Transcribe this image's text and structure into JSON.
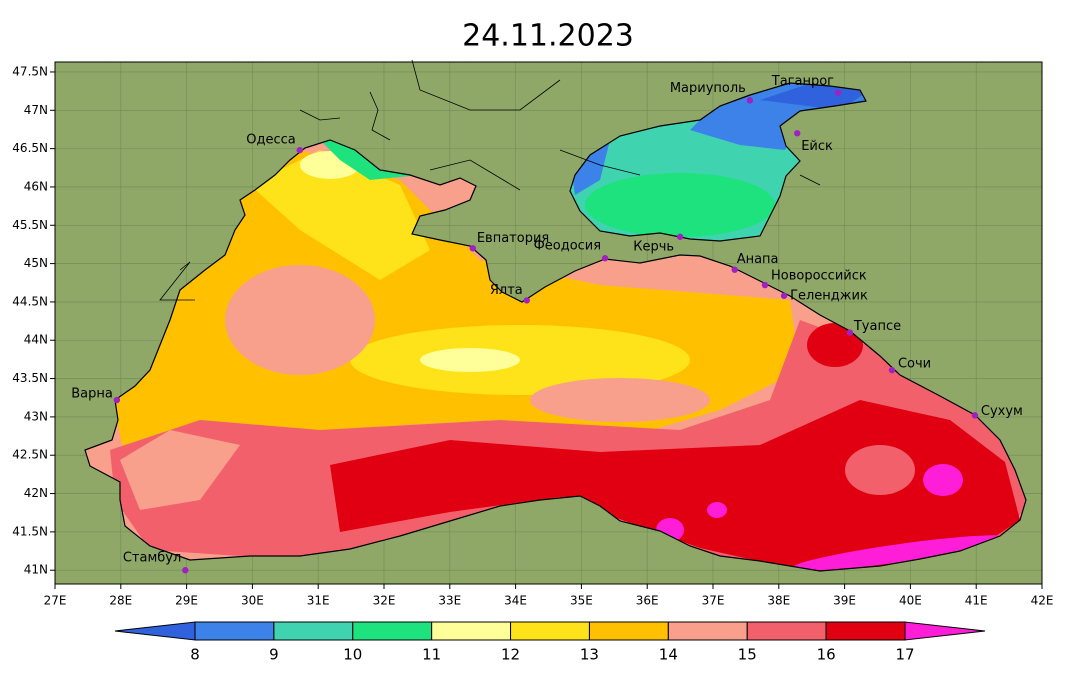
{
  "title": "24.11.2023",
  "map": {
    "lon_range": [
      27,
      42
    ],
    "lat_range": [
      40.82,
      47.63
    ],
    "land_color": "#8fa868",
    "lon_ticks": [
      {
        "value": 27,
        "label": "27E"
      },
      {
        "value": 28,
        "label": "28E"
      },
      {
        "value": 29,
        "label": "29E"
      },
      {
        "value": 30,
        "label": "30E"
      },
      {
        "value": 31,
        "label": "31E"
      },
      {
        "value": 32,
        "label": "32E"
      },
      {
        "value": 33,
        "label": "33E"
      },
      {
        "value": 34,
        "label": "34E"
      },
      {
        "value": 35,
        "label": "35E"
      },
      {
        "value": 36,
        "label": "36E"
      },
      {
        "value": 37,
        "label": "37E"
      },
      {
        "value": 38,
        "label": "38E"
      },
      {
        "value": 39,
        "label": "39E"
      },
      {
        "value": 40,
        "label": "40E"
      },
      {
        "value": 41,
        "label": "41E"
      },
      {
        "value": 42,
        "label": "42E"
      }
    ],
    "lat_ticks": [
      {
        "value": 47.5,
        "label": "47.5N"
      },
      {
        "value": 47,
        "label": "47N"
      },
      {
        "value": 46.5,
        "label": "46.5N"
      },
      {
        "value": 46,
        "label": "46N"
      },
      {
        "value": 45.5,
        "label": "45.5N"
      },
      {
        "value": 45,
        "label": "45N"
      },
      {
        "value": 44.5,
        "label": "44.5N"
      },
      {
        "value": 44,
        "label": "44N"
      },
      {
        "value": 43.5,
        "label": "43.5N"
      },
      {
        "value": 43,
        "label": "43N"
      },
      {
        "value": 42.5,
        "label": "42.5N"
      },
      {
        "value": 42,
        "label": "42N"
      },
      {
        "value": 41.5,
        "label": "41.5N"
      },
      {
        "value": 41,
        "label": "41N"
      }
    ],
    "cities": [
      {
        "name": "Одесса",
        "lon": 30.72,
        "lat": 46.48
      },
      {
        "name": "Евпатория",
        "lon": 33.35,
        "lat": 45.2
      },
      {
        "name": "Феодосия",
        "lon": 35.36,
        "lat": 45.07
      },
      {
        "name": "Керчь",
        "lon": 36.5,
        "lat": 45.35
      },
      {
        "name": "Ялта",
        "lon": 34.17,
        "lat": 44.52
      },
      {
        "name": "Мариуполь",
        "lon": 37.56,
        "lat": 47.13
      },
      {
        "name": "Таганрог",
        "lon": 38.9,
        "lat": 47.23
      },
      {
        "name": "Ейск",
        "lon": 38.28,
        "lat": 46.7
      },
      {
        "name": "Анапа",
        "lon": 37.33,
        "lat": 44.92
      },
      {
        "name": "Новороссийск",
        "lon": 37.79,
        "lat": 44.72
      },
      {
        "name": "Геленджик",
        "lon": 38.08,
        "lat": 44.58
      },
      {
        "name": "Туапсе",
        "lon": 39.08,
        "lat": 44.1
      },
      {
        "name": "Сочи",
        "lon": 39.72,
        "lat": 43.61
      },
      {
        "name": "Сухум",
        "lon": 40.98,
        "lat": 43.02
      },
      {
        "name": "Варна",
        "lon": 27.94,
        "lat": 43.22
      },
      {
        "name": "Стамбул",
        "lon": 28.98,
        "lat": 41.0
      }
    ]
  },
  "colorbar": {
    "levels": [
      8,
      9,
      10,
      11,
      12,
      13,
      14,
      15,
      16,
      17
    ],
    "colors": [
      "#2f62dc",
      "#3c82e8",
      "#3fd3b0",
      "#1ee27e",
      "#ffff99",
      "#ffe31a",
      "#ffc000",
      "#f8a08c",
      "#f2606c",
      "#e00012",
      "#ff1ed8"
    ]
  }
}
